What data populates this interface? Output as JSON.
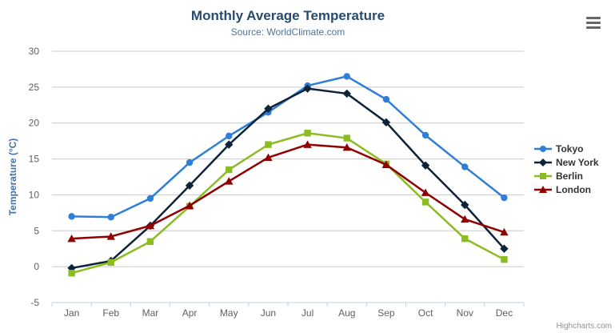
{
  "chart_data": {
    "type": "line",
    "title": "Monthly Average Temperature",
    "subtitle": "Source: WorldClimate.com",
    "categories": [
      "Jan",
      "Feb",
      "Mar",
      "Apr",
      "May",
      "Jun",
      "Jul",
      "Aug",
      "Sep",
      "Oct",
      "Nov",
      "Dec"
    ],
    "xlabel": "",
    "ylabel": "Temperature (°C)",
    "ylim": [
      -5,
      30
    ],
    "yticks": [
      -5,
      0,
      5,
      10,
      15,
      20,
      25,
      30
    ],
    "grid": true,
    "legend_position": "right",
    "series": [
      {
        "name": "Tokyo",
        "color": "#2f7ed8",
        "marker": "circle",
        "values": [
          7.0,
          6.9,
          9.5,
          14.5,
          18.2,
          21.5,
          25.2,
          26.5,
          23.3,
          18.3,
          13.9,
          9.6
        ]
      },
      {
        "name": "New York",
        "color": "#0d233a",
        "marker": "diamond",
        "values": [
          -0.2,
          0.8,
          5.7,
          11.3,
          17.0,
          22.0,
          24.8,
          24.1,
          20.1,
          14.1,
          8.6,
          2.5
        ]
      },
      {
        "name": "Berlin",
        "color": "#8bbc21",
        "marker": "square",
        "values": [
          -0.9,
          0.6,
          3.5,
          8.4,
          13.5,
          17.0,
          18.6,
          17.9,
          14.3,
          9.0,
          3.9,
          1.0
        ]
      },
      {
        "name": "London",
        "color": "#910000",
        "marker": "triangle",
        "values": [
          3.9,
          4.2,
          5.7,
          8.5,
          11.9,
          15.2,
          17.0,
          16.6,
          14.2,
          10.3,
          6.6,
          4.8
        ]
      }
    ]
  },
  "ui_colors": {
    "background": "#ffffff",
    "title_color": "#274b6d",
    "subtitle_color": "#4d759e",
    "axis_title_color": "#4572a7",
    "tick_label_color": "#606060",
    "gridline_color": "#c8c8c8",
    "axis_line_color": "#c0d0e0",
    "legend_text_color": "#333333",
    "credit_color": "#909090",
    "menu_icon_color": "#666666"
  },
  "toolbar": {
    "menu_icon": "hamburger-icon"
  },
  "credit": {
    "label": "Highcharts.com"
  }
}
